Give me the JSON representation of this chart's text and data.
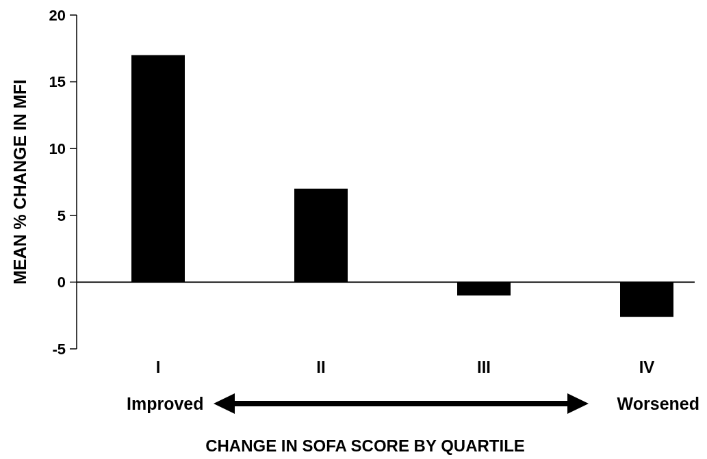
{
  "chart_data": {
    "type": "bar",
    "categories": [
      "I",
      "II",
      "III",
      "IV"
    ],
    "values": [
      17.0,
      7.0,
      -1.0,
      -2.6
    ],
    "color": "#000000",
    "ylim": [
      -5,
      20
    ],
    "yticks": [
      -5,
      0,
      5,
      10,
      15,
      20
    ],
    "ylabel": "MEAN % CHANGE IN MFI",
    "xlabel": "CHANGE IN SOFA SCORE BY QUARTILE",
    "annotations": [
      "Improved",
      "Worsened"
    ]
  }
}
